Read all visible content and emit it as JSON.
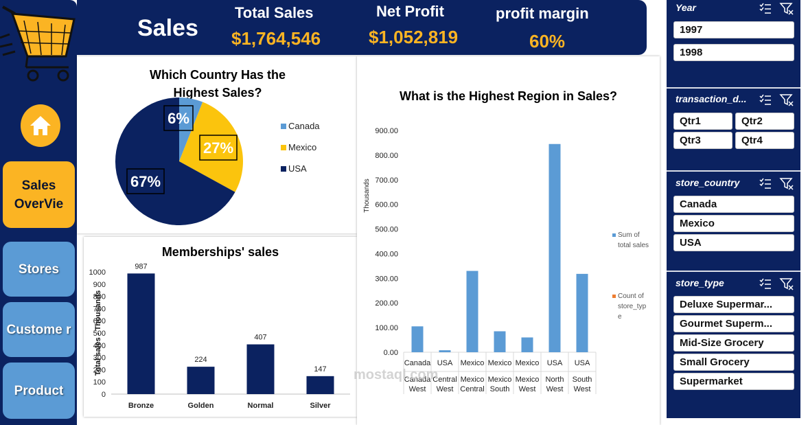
{
  "header": {
    "title": "Sales",
    "kpis": [
      {
        "label": "Total Sales",
        "value": "$1,764,546"
      },
      {
        "label": "Net Profit",
        "value": "$1,052,819"
      },
      {
        "label": "profit margin",
        "value": "60%"
      }
    ]
  },
  "nav": {
    "sales_overview": "Sales OverVie",
    "stores": "Stores",
    "customer": "Custome r",
    "product": "Product"
  },
  "colors": {
    "navy": "#0b2260",
    "gold": "#fbb423",
    "lightblue": "#5b9bd5",
    "orange": "#ed7d31"
  },
  "chart_data": [
    {
      "type": "pie",
      "title": "Which Country Has the Highest Sales?",
      "categories": [
        "Canada",
        "Mexico",
        "USA"
      ],
      "values": [
        6,
        27,
        67
      ],
      "labels": [
        "6%",
        "27%",
        "67%"
      ],
      "colors": [
        "#5b9bd5",
        "#fbc40d",
        "#0b2260"
      ],
      "legend": "right"
    },
    {
      "type": "bar",
      "title": "Memberships' sales",
      "categories": [
        "Bronze",
        "Golden",
        "Normal",
        "Silver"
      ],
      "values": [
        987,
        224,
        407,
        147
      ],
      "ylabel": "Total sales - Thousands",
      "ylim": [
        0,
        1000
      ],
      "yticks": [
        "0",
        "100",
        "200",
        "300",
        "400",
        "500",
        "600",
        "700",
        "800",
        "900",
        "1000"
      ],
      "color": "#0b2260"
    },
    {
      "type": "bar",
      "title": "What is the Highest Region in Sales?",
      "ylabel": "Thousands",
      "ylim": [
        0,
        900
      ],
      "yticks": [
        "0.00",
        "100.00",
        "200.00",
        "300.00",
        "400.00",
        "500.00",
        "600.00",
        "700.00",
        "800.00",
        "900.00"
      ],
      "categories_outer": [
        "Canada",
        "USA",
        "Mexico",
        "Mexico",
        "Mexico",
        "USA",
        "USA"
      ],
      "categories_inner": [
        "Canada West",
        "Central West",
        "Mexico Central",
        "Mexico South",
        "Mexico West",
        "North West",
        "South West"
      ],
      "series": [
        {
          "name": "Sum of total sales",
          "values": [
            105,
            8,
            330,
            85,
            60,
            845,
            318
          ],
          "color": "#5b9bd5"
        },
        {
          "name": "Count of store_type",
          "values": [
            0,
            0,
            0,
            0,
            0,
            0,
            0
          ],
          "color": "#ed7d31"
        }
      ],
      "legend": "right"
    }
  ],
  "slicers": {
    "year": {
      "title": "Year",
      "items": [
        "1997",
        "1998"
      ]
    },
    "transaction": {
      "title": "transaction_d...",
      "items": [
        "Qtr1",
        "Qtr2",
        "Qtr3",
        "Qtr4"
      ]
    },
    "country": {
      "title": "store_country",
      "items": [
        "Canada",
        "Mexico",
        "USA"
      ]
    },
    "store_type": {
      "title": "store_type",
      "items": [
        "Deluxe Supermar...",
        "Gourmet Superm...",
        "Mid-Size Grocery",
        "Small Grocery",
        "Supermarket"
      ]
    }
  },
  "watermark": "mostaql.com"
}
